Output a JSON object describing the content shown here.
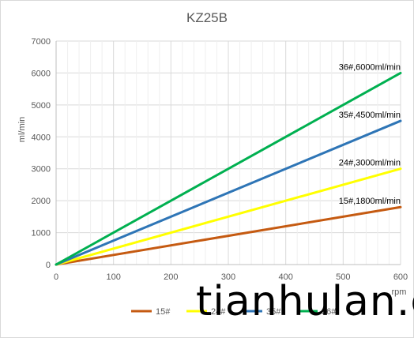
{
  "chart_data": {
    "type": "line",
    "title": "KZ25B",
    "xlabel": "rpm",
    "ylabel": "ml/min",
    "xlim": [
      0,
      600
    ],
    "ylim": [
      0,
      7000
    ],
    "x_ticks": [
      0,
      100,
      200,
      300,
      400,
      500,
      600
    ],
    "y_ticks": [
      0,
      1000,
      2000,
      3000,
      4000,
      5000,
      6000,
      7000
    ],
    "grid": true,
    "legend_position": "bottom",
    "series": [
      {
        "name": "15#",
        "color": "#c55a11",
        "x": [
          0,
          600
        ],
        "y": [
          0,
          1800
        ]
      },
      {
        "name": "24#",
        "color": "#ffff00",
        "x": [
          0,
          600
        ],
        "y": [
          0,
          3000
        ]
      },
      {
        "name": "35#",
        "color": "#2e75b6",
        "x": [
          0,
          600
        ],
        "y": [
          0,
          4500
        ]
      },
      {
        "name": "36#",
        "color": "#00b050",
        "x": [
          0,
          600
        ],
        "y": [
          0,
          6000
        ]
      }
    ],
    "annotations": [
      {
        "text": "36#,6000ml/min",
        "series": "36#"
      },
      {
        "text": "35#,4500ml/min",
        "series": "35#"
      },
      {
        "text": "24#,3000ml/min",
        "series": "24#"
      },
      {
        "text": "15#,1800ml/min",
        "series": "15#"
      }
    ]
  },
  "watermark": "tianhulan.com"
}
